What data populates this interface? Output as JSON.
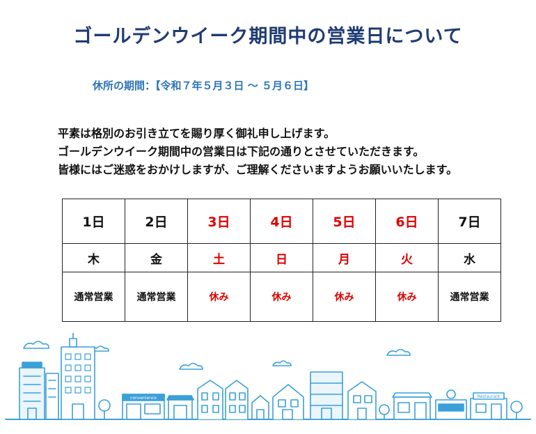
{
  "title": "ゴールデンウイーク期間中の営業日について",
  "period": "休所の期間：【令和７年５月３日 ～ ５月６日】",
  "message": [
    "平素は格別のお引き立てを賜り厚く御礼申し上げます。",
    "ゴールデンウイーク期間中の営業日は下記の通りとさせていただきます。",
    "皆様にはご迷惑をおかけしますが、ご理解くださいますようお願いいたします。"
  ],
  "schedule": [
    {
      "date": "1日",
      "dow": "木",
      "status": "通常営業",
      "holiday": false
    },
    {
      "date": "2日",
      "dow": "金",
      "status": "通常営業",
      "holiday": false
    },
    {
      "date": "3日",
      "dow": "土",
      "status": "休み",
      "holiday": true
    },
    {
      "date": "4日",
      "dow": "日",
      "status": "休み",
      "holiday": true
    },
    {
      "date": "5日",
      "dow": "月",
      "status": "休み",
      "holiday": true
    },
    {
      "date": "6日",
      "dow": "火",
      "status": "休み",
      "holiday": true
    },
    {
      "date": "7日",
      "dow": "水",
      "status": "通常営業",
      "holiday": false
    }
  ],
  "illustration": {
    "store_sign": "convenience",
    "restaurant_sign": "Restaurant",
    "line_color": "#3aa0d8"
  },
  "colors": {
    "title": "#1f3b73",
    "period": "#2e75b6",
    "holiday": "#e00000"
  }
}
